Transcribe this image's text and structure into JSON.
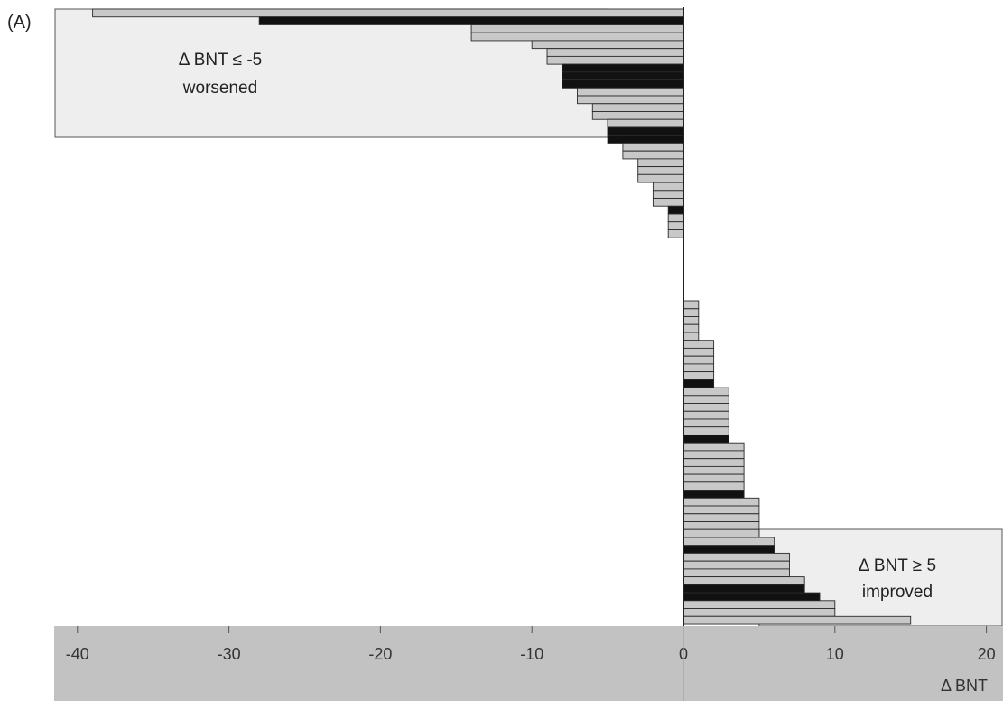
{
  "chart_data": {
    "type": "bar",
    "orientation": "horizontal",
    "panel_label": "(A)",
    "xlabel": "Δ BNT",
    "xlim": [
      -40,
      21
    ],
    "xticks": [
      -40,
      -30,
      -20,
      -10,
      0,
      10,
      20
    ],
    "xtick_labels": [
      "-40",
      "-30",
      "-20",
      "-10",
      "0",
      "10",
      "20"
    ],
    "regions": [
      {
        "name": "worsened",
        "lines": [
          "Δ BNT ≤ -5",
          "worsened"
        ],
        "threshold": -5
      },
      {
        "name": "improved",
        "lines": [
          "Δ BNT ≥ 5",
          "improved"
        ],
        "threshold": 5
      }
    ],
    "colors": {
      "gray_bar": "#c8c8c8",
      "black_bar": "#111111",
      "region_fill": "#eeeeee",
      "axis_band": "#c2c2c2"
    },
    "bar_kinds": [
      "gray",
      "black"
    ],
    "values": [
      -39,
      -28,
      -14,
      -14,
      -10,
      -9,
      -9,
      -8,
      -8,
      -8,
      -7,
      -7,
      -6,
      -6,
      -5,
      -5,
      -5,
      -4,
      -4,
      -3,
      -3,
      -3,
      -2,
      -2,
      -2,
      -1,
      -1,
      -1,
      -1,
      0,
      0,
      0,
      0,
      0,
      0,
      0,
      0,
      1,
      1,
      1,
      1,
      1,
      2,
      2,
      2,
      2,
      2,
      2,
      3,
      3,
      3,
      3,
      3,
      3,
      3,
      4,
      4,
      4,
      4,
      4,
      4,
      4,
      5,
      5,
      5,
      5,
      5,
      6,
      6,
      7,
      7,
      7,
      8,
      8,
      9,
      10,
      10,
      15
    ],
    "kinds": [
      0,
      1,
      0,
      0,
      0,
      0,
      0,
      1,
      1,
      1,
      0,
      0,
      0,
      0,
      0,
      1,
      1,
      0,
      0,
      0,
      0,
      0,
      0,
      0,
      0,
      1,
      0,
      0,
      0,
      0,
      0,
      0,
      0,
      0,
      0,
      0,
      0,
      0,
      0,
      0,
      0,
      0,
      0,
      0,
      0,
      0,
      0,
      1,
      0,
      0,
      0,
      0,
      0,
      0,
      1,
      0,
      0,
      0,
      0,
      0,
      0,
      1,
      0,
      0,
      0,
      0,
      0,
      0,
      1,
      0,
      0,
      0,
      0,
      1,
      1,
      0,
      0,
      0
    ]
  }
}
